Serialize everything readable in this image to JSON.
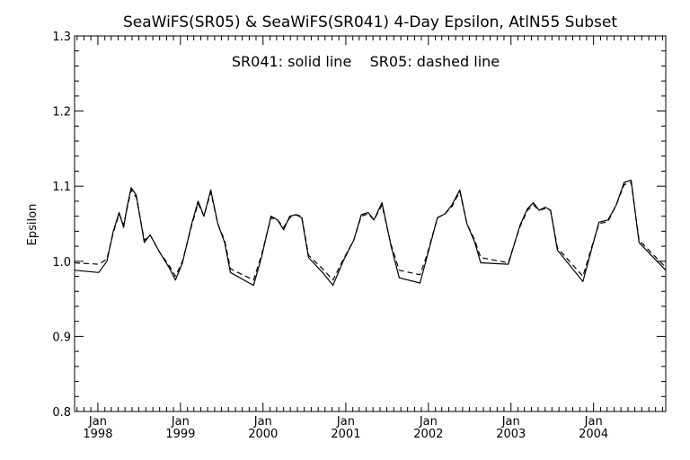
{
  "chart_data": {
    "type": "line",
    "title": "SeaWiFS(SR05) & SeaWiFS(SR041) 4-Day Epsilon, AtlN55 Subset",
    "annotation": "SR041: solid line    SR05: dashed line",
    "xlabel": "",
    "ylabel": "Epsilon",
    "ylim": [
      0.8,
      1.3
    ],
    "xlim": [
      "1997-09-20",
      "2004-11-15"
    ],
    "y_ticks": [
      "0.8",
      "0.9",
      "1.0",
      "1.1",
      "1.2",
      "1.3"
    ],
    "x_ticks": [
      {
        "month": "Jan",
        "year": "1998",
        "date": "1998-01-01"
      },
      {
        "month": "Jan",
        "year": "1999",
        "date": "1999-01-01"
      },
      {
        "month": "Jan",
        "year": "2000",
        "date": "2000-01-01"
      },
      {
        "month": "Jan",
        "year": "2001",
        "date": "2001-01-01"
      },
      {
        "month": "Jan",
        "year": "2002",
        "date": "2002-01-01"
      },
      {
        "month": "Jan",
        "year": "2003",
        "date": "2003-01-01"
      },
      {
        "month": "Jan",
        "year": "2004",
        "date": "2004-01-01"
      }
    ],
    "grid": false,
    "legend": "none",
    "series": [
      {
        "name": "SR041",
        "style": "solid",
        "color": "#000000",
        "points": [
          [
            "1997-09-20",
            0.988
          ],
          [
            "1998-01-05",
            0.985
          ],
          [
            "1998-02-10",
            1.0
          ],
          [
            "1998-03-10",
            1.04
          ],
          [
            "1998-04-05",
            1.065
          ],
          [
            "1998-04-25",
            1.045
          ],
          [
            "1998-05-10",
            1.072
          ],
          [
            "1998-05-28",
            1.098
          ],
          [
            "1998-06-20",
            1.088
          ],
          [
            "1998-07-25",
            1.025
          ],
          [
            "1998-08-20",
            1.035
          ],
          [
            "1998-10-01",
            1.012
          ],
          [
            "1998-11-15",
            0.99
          ],
          [
            "1998-12-10",
            0.975
          ],
          [
            "1999-01-10",
            0.998
          ],
          [
            "1999-02-20",
            1.05
          ],
          [
            "1999-03-20",
            1.08
          ],
          [
            "1999-04-15",
            1.06
          ],
          [
            "1999-05-15",
            1.095
          ],
          [
            "1999-06-15",
            1.05
          ],
          [
            "1999-07-15",
            1.025
          ],
          [
            "1999-08-10",
            0.985
          ],
          [
            "1999-11-20",
            0.968
          ],
          [
            "1999-12-25",
            1.005
          ],
          [
            "2000-02-05",
            1.06
          ],
          [
            "2000-03-05",
            1.055
          ],
          [
            "2000-04-01",
            1.042
          ],
          [
            "2000-04-28",
            1.06
          ],
          [
            "2000-05-25",
            1.062
          ],
          [
            "2000-06-20",
            1.058
          ],
          [
            "2000-07-20",
            1.005
          ],
          [
            "2000-09-20",
            0.985
          ],
          [
            "2000-11-05",
            0.968
          ],
          [
            "2000-12-20",
            1.0
          ],
          [
            "2001-02-05",
            1.028
          ],
          [
            "2001-03-10",
            1.062
          ],
          [
            "2001-04-10",
            1.065
          ],
          [
            "2001-05-05",
            1.055
          ],
          [
            "2001-06-10",
            1.078
          ],
          [
            "2001-07-20",
            1.02
          ],
          [
            "2001-08-25",
            0.978
          ],
          [
            "2001-11-25",
            0.971
          ],
          [
            "2001-12-25",
            1.005
          ],
          [
            "2002-02-10",
            1.058
          ],
          [
            "2002-03-15",
            1.063
          ],
          [
            "2002-04-15",
            1.075
          ],
          [
            "2002-05-20",
            1.095
          ],
          [
            "2002-06-20",
            1.05
          ],
          [
            "2002-07-25",
            1.025
          ],
          [
            "2002-08-20",
            0.998
          ],
          [
            "2002-12-20",
            0.996
          ],
          [
            "2003-02-10",
            1.048
          ],
          [
            "2003-03-15",
            1.07
          ],
          [
            "2003-04-10",
            1.078
          ],
          [
            "2003-05-05",
            1.068
          ],
          [
            "2003-06-01",
            1.072
          ],
          [
            "2003-06-25",
            1.068
          ],
          [
            "2003-07-25",
            1.015
          ],
          [
            "2003-11-15",
            0.973
          ],
          [
            "2003-12-25",
            1.018
          ],
          [
            "2004-01-25",
            1.052
          ],
          [
            "2004-03-05",
            1.055
          ],
          [
            "2004-04-10",
            1.075
          ],
          [
            "2004-05-15",
            1.105
          ],
          [
            "2004-06-15",
            1.108
          ],
          [
            "2004-07-20",
            1.025
          ],
          [
            "2004-11-15",
            0.988
          ]
        ]
      },
      {
        "name": "SR05",
        "style": "dashed",
        "color": "#000000",
        "points": [
          [
            "1997-09-20",
            0.998
          ],
          [
            "1998-01-05",
            0.996
          ],
          [
            "1998-02-10",
            1.003
          ],
          [
            "1998-03-10",
            1.038
          ],
          [
            "1998-04-05",
            1.063
          ],
          [
            "1998-04-25",
            1.048
          ],
          [
            "1998-05-10",
            1.07
          ],
          [
            "1998-05-28",
            1.095
          ],
          [
            "1998-06-20",
            1.085
          ],
          [
            "1998-07-25",
            1.028
          ],
          [
            "1998-08-20",
            1.035
          ],
          [
            "1998-10-01",
            1.012
          ],
          [
            "1998-11-15",
            0.993
          ],
          [
            "1998-12-10",
            0.98
          ],
          [
            "1999-01-10",
            1.0
          ],
          [
            "1999-02-20",
            1.048
          ],
          [
            "1999-03-20",
            1.077
          ],
          [
            "1999-04-15",
            1.06
          ],
          [
            "1999-05-15",
            1.092
          ],
          [
            "1999-06-15",
            1.05
          ],
          [
            "1999-07-15",
            1.028
          ],
          [
            "1999-08-10",
            0.99
          ],
          [
            "1999-11-20",
            0.975
          ],
          [
            "1999-12-25",
            1.008
          ],
          [
            "2000-02-05",
            1.058
          ],
          [
            "2000-03-05",
            1.055
          ],
          [
            "2000-04-01",
            1.045
          ],
          [
            "2000-04-28",
            1.058
          ],
          [
            "2000-05-25",
            1.062
          ],
          [
            "2000-06-20",
            1.06
          ],
          [
            "2000-07-20",
            1.008
          ],
          [
            "2000-09-20",
            0.99
          ],
          [
            "2000-11-05",
            0.975
          ],
          [
            "2000-12-20",
            1.002
          ],
          [
            "2001-02-05",
            1.028
          ],
          [
            "2001-03-10",
            1.06
          ],
          [
            "2001-04-10",
            1.063
          ],
          [
            "2001-05-05",
            1.055
          ],
          [
            "2001-06-10",
            1.075
          ],
          [
            "2001-07-20",
            1.022
          ],
          [
            "2001-08-25",
            0.988
          ],
          [
            "2001-11-25",
            0.982
          ],
          [
            "2001-12-25",
            1.008
          ],
          [
            "2002-02-10",
            1.058
          ],
          [
            "2002-03-15",
            1.063
          ],
          [
            "2002-04-15",
            1.073
          ],
          [
            "2002-05-20",
            1.093
          ],
          [
            "2002-06-20",
            1.05
          ],
          [
            "2002-07-25",
            1.028
          ],
          [
            "2002-08-20",
            1.005
          ],
          [
            "2002-12-20",
            0.998
          ],
          [
            "2003-02-10",
            1.046
          ],
          [
            "2003-03-15",
            1.068
          ],
          [
            "2003-04-10",
            1.075
          ],
          [
            "2003-05-05",
            1.068
          ],
          [
            "2003-06-01",
            1.07
          ],
          [
            "2003-06-25",
            1.068
          ],
          [
            "2003-07-25",
            1.018
          ],
          [
            "2003-11-15",
            0.98
          ],
          [
            "2003-12-25",
            1.02
          ],
          [
            "2004-01-25",
            1.05
          ],
          [
            "2004-03-05",
            1.053
          ],
          [
            "2004-04-10",
            1.075
          ],
          [
            "2004-05-15",
            1.102
          ],
          [
            "2004-06-15",
            1.105
          ],
          [
            "2004-07-20",
            1.028
          ],
          [
            "2004-11-15",
            0.992
          ]
        ]
      }
    ]
  }
}
